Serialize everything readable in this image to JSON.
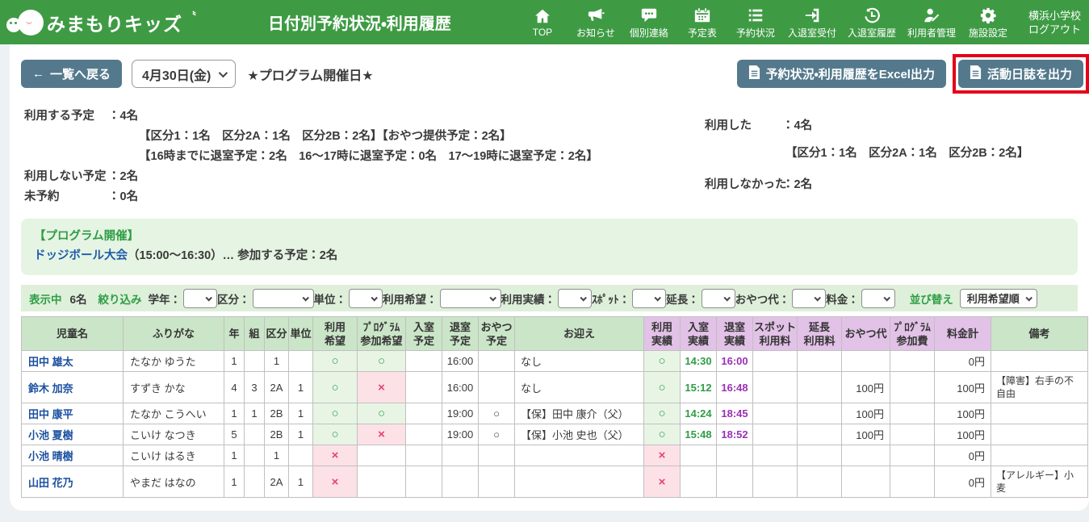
{
  "header": {
    "logo_text": "みまもりキッズ",
    "logo_spark": "〝",
    "title": "日付別予約状況・利用履歴",
    "nav": [
      {
        "label": "TOP",
        "icon": "home-icon"
      },
      {
        "label": "お知らせ",
        "icon": "megaphone-icon"
      },
      {
        "label": "個別連絡",
        "icon": "chat-icon"
      },
      {
        "label": "予定表",
        "icon": "calendar-icon"
      },
      {
        "label": "予約状況",
        "icon": "list-icon"
      },
      {
        "label": "入退室受付",
        "icon": "enter-icon"
      },
      {
        "label": "入退室履歴",
        "icon": "history-icon"
      },
      {
        "label": "利用者管理",
        "icon": "user-edit-icon"
      },
      {
        "label": "施設設定",
        "icon": "gear-icon"
      }
    ],
    "school_name": "横浜小学校",
    "logout_label": "ログアウト"
  },
  "toolbar": {
    "back_arrow": "←",
    "back_label": "一覧へ戻る",
    "date_value": "4月30日(金)",
    "program_day_label": "★プログラム開催日★",
    "excel_button_label": "予約状況・利用履歴をExcel出力",
    "journal_button_label": "活動日誌を出力"
  },
  "summary": {
    "left": {
      "plan_use_label": "利用する予定",
      "plan_use_value": "：4名",
      "plan_use_detail1": "【区分1：1名　区分2A：1名　区分2B：2名】【おやつ提供予定：2名】",
      "plan_use_detail2": "【16時までに退室予定：2名　16～17時に退室予定：0名　17～19時に退室予定：2名】",
      "plan_not_use_label": "利用しない予定",
      "plan_not_use_value": "：2名",
      "no_reserve_label": "未予約",
      "no_reserve_value": "：0名"
    },
    "right": {
      "used_label": "利用した",
      "used_value": "：4名",
      "used_detail": "【区分1：1名　区分2A：1名　区分2B：2名】",
      "not_used_label": "利用しなかった",
      "not_used_value": "：2名"
    }
  },
  "program": {
    "heading": "【プログラム開催】",
    "name": "ドッジボール大会",
    "detail": "（15:00～16:30）… 参加する予定：2名"
  },
  "filter": {
    "showing_label": "表示中",
    "showing_count": "6名",
    "narrow_label": "絞り込み",
    "fields": [
      {
        "label": "学年：",
        "size": "narrow"
      },
      {
        "label": "区分：",
        "size": "wide"
      },
      {
        "label": "単位：",
        "size": "narrow"
      },
      {
        "label": "利用希望：",
        "size": "wide"
      },
      {
        "label": "利用実績：",
        "size": "narrow"
      },
      {
        "label": "ｽﾎﾟｯﾄ：",
        "size": "narrow"
      },
      {
        "label": "延長：",
        "size": "narrow"
      },
      {
        "label": "おやつ代：",
        "size": "narrow"
      },
      {
        "label": "料金：",
        "size": "narrow"
      }
    ],
    "sort_label": "並び替え",
    "sort_value": "利用希望順"
  },
  "table": {
    "headers": [
      {
        "label": "児童名",
        "theme": "green"
      },
      {
        "label": "ふりがな",
        "theme": "green"
      },
      {
        "label": "年",
        "theme": "green"
      },
      {
        "label": "組",
        "theme": "green"
      },
      {
        "label": "区分",
        "theme": "green"
      },
      {
        "label": "単位",
        "theme": "green"
      },
      {
        "label": "利用\n希望",
        "theme": "green"
      },
      {
        "label": "ﾌﾟﾛｸﾞﾗﾑ\n参加希望",
        "theme": "green"
      },
      {
        "label": "入室\n予定",
        "theme": "green"
      },
      {
        "label": "退室\n予定",
        "theme": "green"
      },
      {
        "label": "おやつ\n予定",
        "theme": "green"
      },
      {
        "label": "お迎え",
        "theme": "green"
      },
      {
        "label": "利用\n実績",
        "theme": "purple"
      },
      {
        "label": "入室\n実績",
        "theme": "purple"
      },
      {
        "label": "退室\n実績",
        "theme": "purple"
      },
      {
        "label": "スポット\n利用料",
        "theme": "purple"
      },
      {
        "label": "延長\n利用料",
        "theme": "purple"
      },
      {
        "label": "おやつ代",
        "theme": "purple"
      },
      {
        "label": "ﾌﾟﾛｸﾞﾗﾑ\n参加費",
        "theme": "purple"
      },
      {
        "label": "料金計",
        "theme": "purple"
      },
      {
        "label": "備考",
        "theme": "green"
      }
    ],
    "rows": [
      {
        "name": "田中 雄太",
        "kana": "たなか ゆうた",
        "grade": "1",
        "kumi": "",
        "kubun": "1",
        "unit": "",
        "wish": "○",
        "wish_state": "ok",
        "program": "○",
        "program_state": "ok",
        "entry_plan": "",
        "exit_plan": "16:00",
        "snack_plan": "",
        "pickup": "なし",
        "actual": "○",
        "actual_state": "ok",
        "entry_actual": "14:30",
        "exit_actual": "16:00",
        "spot_fee": "",
        "ext_fee": "",
        "snack_fee": "",
        "program_fee": "",
        "total_fee": "0円",
        "note": ""
      },
      {
        "name": "鈴木 加奈",
        "kana": "すずき かな",
        "grade": "4",
        "kumi": "3",
        "kubun": "2A",
        "unit": "1",
        "wish": "○",
        "wish_state": "ok",
        "program": "×",
        "program_state": "ng",
        "entry_plan": "",
        "exit_plan": "16:00",
        "snack_plan": "",
        "pickup": "なし",
        "actual": "○",
        "actual_state": "ok",
        "entry_actual": "15:12",
        "exit_actual": "16:48",
        "spot_fee": "",
        "ext_fee": "",
        "snack_fee": "100円",
        "program_fee": "",
        "total_fee": "100円",
        "note": "【障害】右手の不自由"
      },
      {
        "name": "田中 康平",
        "kana": "たなか こうへい",
        "grade": "1",
        "kumi": "1",
        "kubun": "2B",
        "unit": "1",
        "wish": "○",
        "wish_state": "ok",
        "program": "○",
        "program_state": "ok",
        "entry_plan": "",
        "exit_plan": "19:00",
        "snack_plan": "○",
        "pickup": "【保】田中 康介（父）",
        "actual": "○",
        "actual_state": "ok",
        "entry_actual": "14:24",
        "exit_actual": "18:45",
        "spot_fee": "",
        "ext_fee": "",
        "snack_fee": "100円",
        "program_fee": "",
        "total_fee": "100円",
        "note": ""
      },
      {
        "name": "小池 夏樹",
        "kana": "こいけ なつき",
        "grade": "5",
        "kumi": "",
        "kubun": "2B",
        "unit": "1",
        "wish": "○",
        "wish_state": "ok",
        "program": "×",
        "program_state": "ng",
        "entry_plan": "",
        "exit_plan": "19:00",
        "snack_plan": "○",
        "pickup": "【保】小池 史也（父）",
        "actual": "○",
        "actual_state": "ok",
        "entry_actual": "15:48",
        "exit_actual": "18:52",
        "spot_fee": "",
        "ext_fee": "",
        "snack_fee": "100円",
        "program_fee": "",
        "total_fee": "100円",
        "note": ""
      },
      {
        "name": "小池 晴樹",
        "kana": "こいけ はるき",
        "grade": "1",
        "kumi": "",
        "kubun": "1",
        "unit": "",
        "wish": "×",
        "wish_state": "ng",
        "program": "",
        "program_state": "",
        "entry_plan": "",
        "exit_plan": "",
        "snack_plan": "",
        "pickup": "",
        "actual": "×",
        "actual_state": "ng",
        "entry_actual": "",
        "exit_actual": "",
        "spot_fee": "",
        "ext_fee": "",
        "snack_fee": "",
        "program_fee": "",
        "total_fee": "0円",
        "note": ""
      },
      {
        "name": "山田 花乃",
        "kana": "やまだ はなの",
        "grade": "1",
        "kumi": "",
        "kubun": "2A",
        "unit": "1",
        "wish": "×",
        "wish_state": "ng",
        "program": "",
        "program_state": "",
        "entry_plan": "",
        "exit_plan": "",
        "snack_plan": "",
        "pickup": "",
        "actual": "×",
        "actual_state": "ng",
        "entry_actual": "",
        "exit_actual": "",
        "spot_fee": "",
        "ext_fee": "",
        "snack_fee": "",
        "program_fee": "",
        "total_fee": "0円",
        "note": "【アレルギー】小麦"
      }
    ]
  }
}
